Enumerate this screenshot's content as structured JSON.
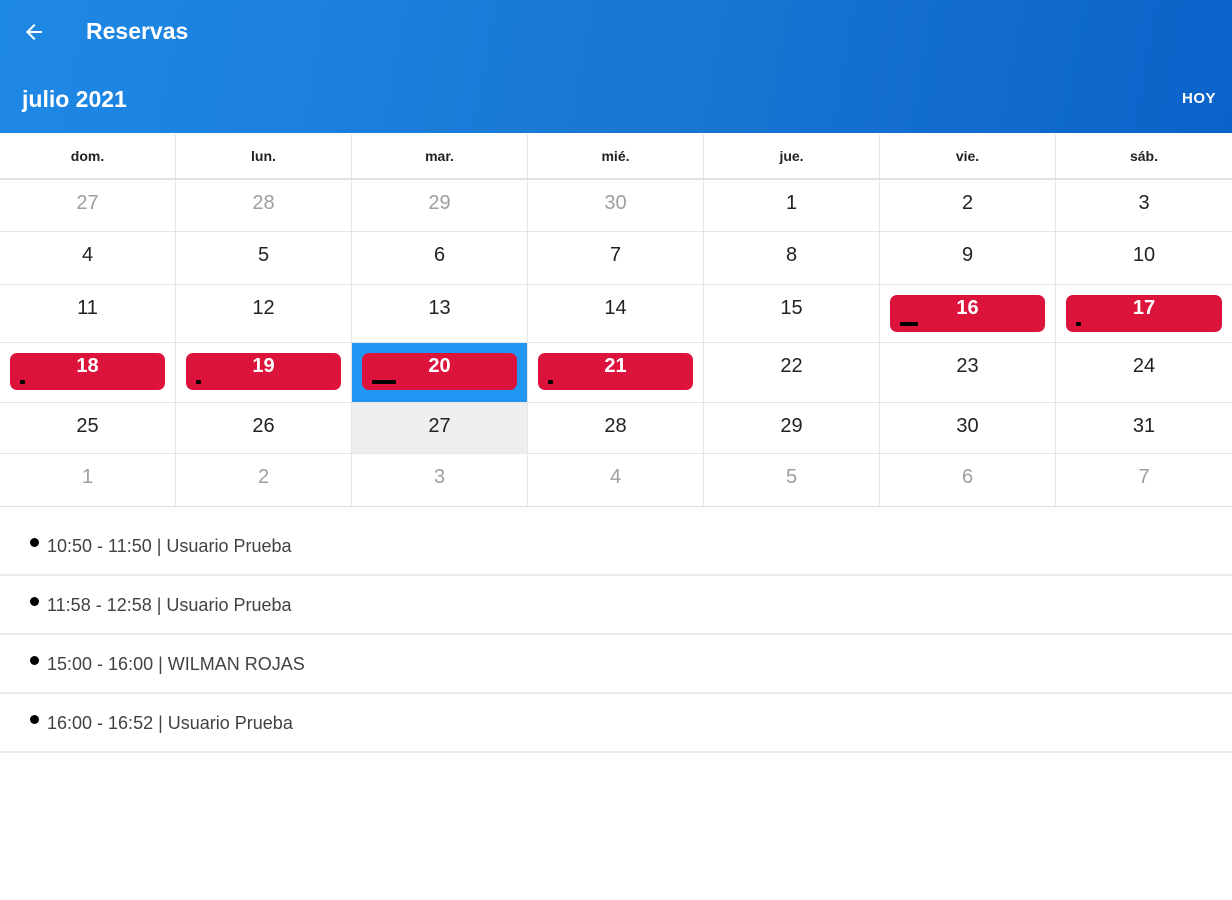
{
  "header": {
    "title": "Reservas",
    "month": "julio 2021",
    "today_label": "HOY",
    "back_icon": "arrow-left-icon",
    "gradient_start": "#1e88e5",
    "gradient_end": "#0a63c9"
  },
  "calendar": {
    "weekdays": [
      "dom.",
      "lun.",
      "mar.",
      "mié.",
      "jue.",
      "vie.",
      "sáb."
    ],
    "weeks": [
      {
        "days": [
          {
            "num": "27",
            "other": true
          },
          {
            "num": "28",
            "other": true
          },
          {
            "num": "29",
            "other": true
          },
          {
            "num": "30",
            "other": true
          },
          {
            "num": "1"
          },
          {
            "num": "2"
          },
          {
            "num": "3"
          }
        ]
      },
      {
        "days": [
          {
            "num": "4"
          },
          {
            "num": "5"
          },
          {
            "num": "6"
          },
          {
            "num": "7"
          },
          {
            "num": "8"
          },
          {
            "num": "9"
          },
          {
            "num": "10"
          }
        ]
      },
      {
        "days": [
          {
            "num": "11"
          },
          {
            "num": "12"
          },
          {
            "num": "13"
          },
          {
            "num": "14"
          },
          {
            "num": "15"
          },
          {
            "num": "16",
            "event": true,
            "dot": "wide"
          },
          {
            "num": "17",
            "event": true,
            "dot": "small"
          }
        ]
      },
      {
        "days": [
          {
            "num": "18",
            "event": true,
            "dot": "small"
          },
          {
            "num": "19",
            "event": true,
            "dot": "small"
          },
          {
            "num": "20",
            "event": true,
            "dot": "wider",
            "selected": true
          },
          {
            "num": "21",
            "event": true,
            "dot": "small"
          },
          {
            "num": "22"
          },
          {
            "num": "23"
          },
          {
            "num": "24"
          }
        ]
      },
      {
        "days": [
          {
            "num": "25"
          },
          {
            "num": "26"
          },
          {
            "num": "27",
            "today": true
          },
          {
            "num": "28"
          },
          {
            "num": "29"
          },
          {
            "num": "30"
          },
          {
            "num": "31"
          }
        ]
      },
      {
        "days": [
          {
            "num": "1",
            "other": true
          },
          {
            "num": "2",
            "other": true
          },
          {
            "num": "3",
            "other": true
          },
          {
            "num": "4",
            "other": true
          },
          {
            "num": "5",
            "other": true
          },
          {
            "num": "6",
            "other": true
          },
          {
            "num": "7",
            "other": true
          }
        ]
      }
    ],
    "event_color": "#dc143c",
    "selected_color": "#2196f3",
    "today_color": "#eeeeee"
  },
  "events": [
    {
      "text": "10:50 - 11:50 | Usuario Prueba"
    },
    {
      "text": "11:58 - 12:58 | Usuario Prueba"
    },
    {
      "text": "15:00 - 16:00 | WILMAN ROJAS"
    },
    {
      "text": "16:00 - 16:52 | Usuario Prueba"
    }
  ]
}
